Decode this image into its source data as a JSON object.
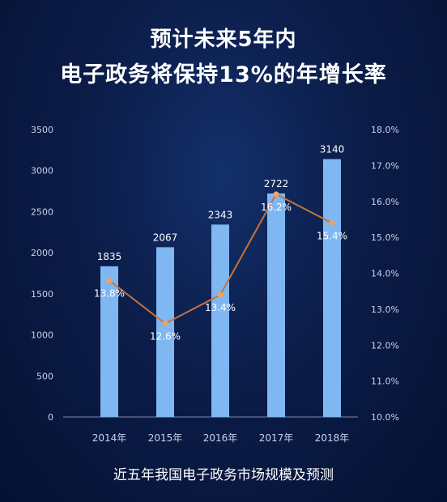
{
  "header": {
    "title_line1": "预计未来5年内",
    "title_line2": "电子政务将保持13%的年增长率"
  },
  "caption": "近五年我国电子政务市场规模及预测",
  "colors": {
    "bar": "#7fb7f2",
    "line": "#c8733a",
    "marker": "#f0a263",
    "axis": "#c8d3ea"
  },
  "chart_data": {
    "type": "bar",
    "categories": [
      "2014年",
      "2015年",
      "2016年",
      "2017年",
      "2018年"
    ],
    "series": [
      {
        "type": "bar",
        "values": [
          1835,
          2067,
          2343,
          2722,
          3140
        ],
        "labels": [
          "1835",
          "2067",
          "2343",
          "2722",
          "3140"
        ],
        "axis": "left"
      },
      {
        "type": "line",
        "values": [
          13.8,
          12.6,
          13.4,
          16.2,
          15.4
        ],
        "labels": [
          "13.8%",
          "12.6%",
          "13.4%",
          "16.2%",
          "15.4%"
        ],
        "axis": "right"
      }
    ],
    "y_left": {
      "ylim": [
        0,
        3500
      ],
      "ticks": [
        "0",
        "500",
        "1000",
        "1500",
        "2000",
        "2500",
        "3000",
        "3500"
      ]
    },
    "y_right": {
      "ylim": [
        10,
        18
      ],
      "ticks": [
        "10.0%",
        "11.0%",
        "12.0%",
        "13.0%",
        "14.0%",
        "15.0%",
        "16.0%",
        "17.0%",
        "18.0%"
      ]
    },
    "grid": false,
    "legend": "none"
  }
}
